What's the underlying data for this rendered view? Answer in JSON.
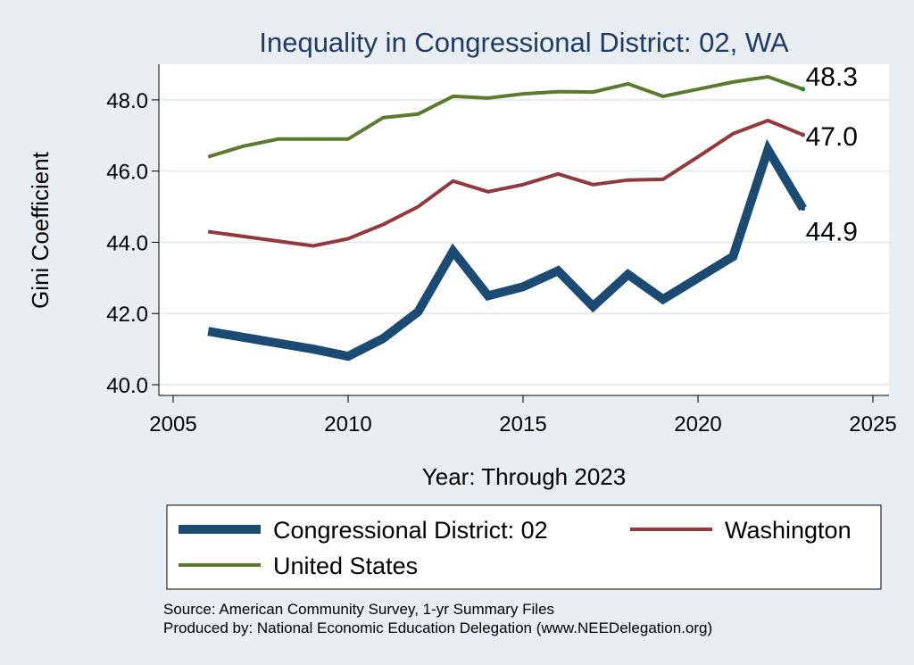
{
  "chart_data": {
    "type": "line",
    "title": "Inequality in Congressional District:  02, WA",
    "xlabel": "Year: Through 2023",
    "ylabel": "Gini Coefficient",
    "xlim": [
      2005,
      2025
    ],
    "ylim": [
      39.7,
      49.0
    ],
    "xticks": [
      2005,
      2010,
      2015,
      2020,
      2025
    ],
    "xtick_labels": [
      "2005",
      "2010",
      "2015",
      "2020",
      "2025"
    ],
    "yticks": [
      40,
      42,
      44,
      46,
      48
    ],
    "ytick_labels": [
      "40.0",
      "42.0",
      "44.0",
      "46.0",
      "48.0"
    ],
    "grid": true,
    "legend_position": "bottom",
    "series": [
      {
        "name": "Congressional District:  02",
        "color": "#1b4a73",
        "end_label": "44.9",
        "x": [
          2006,
          2009,
          2010,
          2011,
          2012,
          2013,
          2014,
          2015,
          2016,
          2017,
          2018,
          2019,
          2020,
          2021,
          2022,
          2023
        ],
        "values": [
          41.5,
          41.0,
          40.8,
          41.3,
          42.05,
          43.75,
          42.5,
          42.75,
          43.2,
          42.2,
          43.1,
          42.4,
          43.0,
          43.6,
          46.6,
          44.95
        ]
      },
      {
        "name": "Washington",
        "color": "#93393e",
        "end_label": "47.0",
        "x": [
          2006,
          2009,
          2010,
          2011,
          2012,
          2013,
          2014,
          2015,
          2016,
          2017,
          2018,
          2019,
          2020,
          2021,
          2022,
          2023
        ],
        "values": [
          44.3,
          43.9,
          44.1,
          44.5,
          45.0,
          45.72,
          45.42,
          45.62,
          45.92,
          45.62,
          45.75,
          45.77,
          46.4,
          47.05,
          47.42,
          47.02
        ]
      },
      {
        "name": "United States",
        "color": "#5a7a2e",
        "end_label": "48.3",
        "x": [
          2006,
          2007,
          2008,
          2009,
          2010,
          2011,
          2012,
          2013,
          2014,
          2015,
          2016,
          2017,
          2018,
          2019,
          2020,
          2021,
          2022,
          2023
        ],
        "values": [
          46.4,
          46.7,
          46.9,
          46.9,
          46.9,
          47.5,
          47.6,
          48.1,
          48.05,
          48.17,
          48.23,
          48.22,
          48.45,
          48.1,
          48.3,
          48.5,
          48.65,
          48.3
        ]
      }
    ],
    "source_lines": [
      "Source: American Community Survey, 1-yr Summary Files",
      "Produced by: National Economic Education Delegation (www.NEEDelegation.org)"
    ]
  }
}
